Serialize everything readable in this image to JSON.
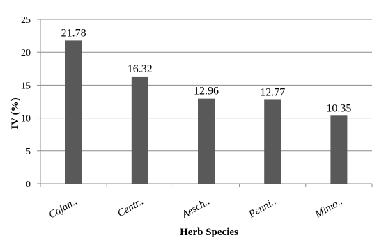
{
  "chart_data": {
    "type": "bar",
    "categories": [
      "Cajan..",
      "Centr..",
      "Aesch..",
      "Penni..",
      "Mimo.."
    ],
    "values": [
      21.78,
      16.32,
      12.96,
      12.77,
      10.35
    ],
    "data_labels": [
      "21.78",
      "16.32",
      "12.96",
      "12.77",
      "10.35"
    ],
    "title": "",
    "xlabel": "Herb Species",
    "ylabel": "IV (%)",
    "ylim": [
      0,
      25
    ],
    "yticks": [
      0,
      5,
      10,
      15,
      20,
      25
    ],
    "grid": true,
    "legend": "none",
    "bar_color": "#595959",
    "grid_color": "#8c8c8c"
  }
}
